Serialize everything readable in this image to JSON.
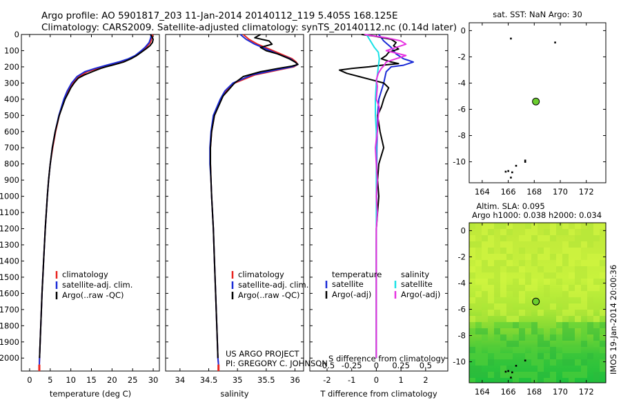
{
  "colors": {
    "climatology": "#e8231e",
    "satellite_clim": "#1a2bd6",
    "argo": "#000000",
    "satellite_sal": "#19e1e6",
    "argo_adj_sal": "#e632e0",
    "argo_dot": "#6acd2e",
    "map_bg_light": "#c8f23c",
    "map_bg_dark": "#1ebf3c"
  },
  "header": {
    "line1": "Argo profile: AO 5901817_203 11-Jan-2014 20140112_119 5.405S 168.125E",
    "line2": "Climatology: CARS2009. Satellite-adjusted climatology: synTS_20140112.nc (0.14d later)"
  },
  "credit": {
    "line1": "US ARGO PROJECT",
    "line2": "PI: GREGORY C. JOHNSON"
  },
  "timestamp": "IMOS 19-Jan-2014 20:00:36",
  "chart_data": [
    {
      "type": "line",
      "id": "temperature",
      "xlabel": "temperature (deg C)",
      "ylabel": "",
      "xlim": [
        -2,
        31.5
      ],
      "ylim": [
        2080,
        0
      ],
      "xticks": [
        0,
        5,
        10,
        15,
        20,
        25,
        30
      ],
      "yticks": [
        0,
        100,
        200,
        300,
        400,
        500,
        600,
        700,
        800,
        900,
        1000,
        1100,
        1200,
        1300,
        1400,
        1500,
        1600,
        1700,
        1800,
        1900,
        2000
      ],
      "legend": {
        "position": "lower-middle",
        "entries": [
          "climatology",
          "satellite-adj. clim.",
          "Argo(..raw -QC)"
        ]
      },
      "series": [
        {
          "name": "climatology",
          "color": "climatology",
          "depth": [
            0,
            20,
            50,
            80,
            100,
            130,
            150,
            170,
            190,
            210,
            230,
            260,
            300,
            350,
            400,
            500,
            600,
            700,
            800,
            900,
            1000,
            1200,
            1400,
            1600,
            1800,
            2000,
            2040
          ],
          "values": [
            29.9,
            29.7,
            29.3,
            28.3,
            27.5,
            26,
            24.5,
            22.5,
            19.5,
            16.5,
            14,
            12,
            10.5,
            9.3,
            8.4,
            7.2,
            6.3,
            5.6,
            5.0,
            4.6,
            4.3,
            3.8,
            3.4,
            3.0,
            2.7,
            2.4,
            2.35
          ]
        },
        {
          "name": "satellite-adj. clim.",
          "color": "satellite_clim",
          "depth": [
            0,
            20,
            50,
            80,
            100,
            130,
            150,
            170,
            190,
            210,
            230,
            260,
            300,
            350,
            400,
            500,
            600,
            700,
            800,
            900,
            1000,
            1200,
            1400,
            1600,
            1800,
            2000,
            2040
          ],
          "values": [
            29.5,
            29.4,
            29.0,
            28.0,
            27.1,
            25.6,
            24,
            21.6,
            18.6,
            15.8,
            13.4,
            11.5,
            10.2,
            9.1,
            8.3,
            7.1,
            6.2,
            5.5,
            5.0,
            4.6,
            4.3,
            3.8,
            3.4,
            3.0,
            2.7,
            2.4,
            2.35
          ]
        },
        {
          "name": "Argo(..raw -QC)",
          "color": "argo",
          "depth": [
            0,
            10,
            30,
            50,
            70,
            90,
            110,
            130,
            150,
            170,
            180,
            190,
            200,
            210,
            230,
            250,
            270,
            300,
            330,
            360,
            400,
            500,
            600,
            700,
            800,
            900,
            1000,
            1200,
            1400,
            1600,
            1800,
            2000
          ],
          "values": [
            29.3,
            29.6,
            30.0,
            29.8,
            29.2,
            28.2,
            27.1,
            26.0,
            24.6,
            22.8,
            21.5,
            20,
            18.5,
            17.2,
            15.2,
            13.3,
            11.8,
            10.8,
            10.0,
            9.4,
            8.6,
            7.2,
            6.2,
            5.5,
            5.0,
            4.6,
            4.3,
            3.8,
            3.4,
            3.0,
            2.7,
            2.4
          ]
        }
      ],
      "markers": [
        {
          "x": 2.35,
          "depth_from": 2040,
          "depth_to": 2080,
          "color": "climatology"
        }
      ]
    },
    {
      "type": "line",
      "id": "salinity",
      "xlabel": "salinity",
      "xlim": [
        33.75,
        36.15
      ],
      "ylim": [
        2080,
        0
      ],
      "xticks": [
        34,
        34.5,
        35,
        35.5,
        36
      ],
      "tick_labels": [
        "34",
        "34.5",
        "35",
        "35.5",
        "36"
      ],
      "legend": {
        "position": "lower-right",
        "entries": [
          "climatology",
          "satellite-adj. clim.",
          "Argo(..raw -QC)"
        ]
      },
      "series": [
        {
          "name": "climatology",
          "color": "climatology",
          "depth": [
            0,
            30,
            60,
            90,
            120,
            150,
            170,
            185,
            200,
            220,
            250,
            300,
            350,
            400,
            500,
            600,
            700,
            800,
            900,
            1000,
            1200,
            1400,
            1600,
            1800,
            2000,
            2040
          ],
          "values": [
            35.1,
            35.2,
            35.35,
            35.55,
            35.75,
            35.95,
            36.02,
            36.05,
            35.98,
            35.7,
            35.3,
            34.95,
            34.8,
            34.72,
            34.6,
            34.55,
            34.53,
            34.53,
            34.54,
            34.55,
            34.58,
            34.6,
            34.62,
            34.64,
            34.66,
            34.67
          ]
        },
        {
          "name": "satellite-adj. clim.",
          "color": "satellite_clim",
          "depth": [
            0,
            30,
            60,
            90,
            120,
            150,
            170,
            185,
            200,
            220,
            250,
            300,
            350,
            400,
            500,
            600,
            700,
            800,
            900,
            1000,
            1200,
            1400,
            1600,
            1800,
            2000,
            2040
          ],
          "values": [
            35.05,
            35.15,
            35.3,
            35.5,
            35.7,
            35.92,
            36.0,
            36.05,
            35.95,
            35.65,
            35.25,
            34.92,
            34.78,
            34.7,
            34.58,
            34.54,
            34.52,
            34.52,
            34.54,
            34.55,
            34.58,
            34.6,
            34.62,
            34.64,
            34.66,
            34.67
          ]
        },
        {
          "name": "Argo(..raw -QC)",
          "color": "argo",
          "depth": [
            0,
            20,
            40,
            60,
            80,
            100,
            120,
            150,
            170,
            185,
            195,
            210,
            230,
            260,
            300,
            340,
            380,
            420,
            500,
            600,
            700,
            800,
            900,
            1000,
            1200,
            1400,
            1600,
            1800,
            2000
          ],
          "values": [
            35.4,
            35.3,
            35.55,
            35.6,
            35.4,
            35.5,
            35.7,
            35.9,
            36.0,
            36.05,
            35.95,
            35.7,
            35.4,
            35.1,
            34.95,
            34.85,
            34.75,
            34.7,
            34.6,
            34.55,
            34.53,
            34.53,
            34.54,
            34.55,
            34.58,
            34.6,
            34.62,
            34.64,
            34.66
          ]
        }
      ],
      "markers": [
        {
          "x": 34.67,
          "depth_from": 2040,
          "depth_to": 2080,
          "color": "climatology"
        }
      ]
    },
    {
      "type": "line",
      "id": "difference",
      "xlabel": "T difference from climatology",
      "xlabel_top": "S difference from climatology",
      "xlim": [
        -2.7,
        2.9
      ],
      "s_xlim": [
        -0.675,
        0.725
      ],
      "ylim": [
        2080,
        0
      ],
      "xticks": [
        -2,
        -1,
        0,
        1,
        2
      ],
      "s_xticks": [
        -0.5,
        -0.25,
        0,
        0.25,
        0.5
      ],
      "s_tick_labels": [
        "-0.5",
        "-0.25",
        "0",
        "0.25",
        "0.5"
      ],
      "legend": {
        "position": "lower-middle",
        "temperature_title": "temperature",
        "salinity_title": "salinity",
        "entries": [
          "satellite",
          "Argo(-adj)",
          "satellite",
          "Argo(-adj)"
        ]
      },
      "series": [
        {
          "name": "T satellite",
          "color": "satellite_clim",
          "axis": "T",
          "depth": [
            0,
            40,
            80,
            120,
            150,
            160,
            170,
            190,
            200,
            230,
            300,
            400,
            500,
            700,
            1000,
            1300,
            1600,
            2000
          ],
          "values": [
            0.1,
            0.3,
            0.6,
            0.8,
            1.1,
            1.3,
            1.5,
            1.1,
            0.6,
            0.4,
            0.3,
            0.1,
            0.05,
            0.02,
            0.01,
            0.0,
            0.0,
            0.0
          ]
        },
        {
          "name": "T Argo(-adj)",
          "color": "argo",
          "axis": "T",
          "depth": [
            0,
            10,
            30,
            50,
            70,
            90,
            110,
            130,
            150,
            170,
            180,
            190,
            200,
            210,
            220,
            240,
            260,
            280,
            300,
            330,
            360,
            400,
            450,
            500,
            550,
            600,
            700,
            800,
            900,
            1000,
            1100,
            1200,
            1400,
            1600,
            1800,
            2000
          ],
          "values": [
            -0.6,
            -0.1,
            0.6,
            0.8,
            0.7,
            0.9,
            0.5,
            0.4,
            0.2,
            0.6,
            0.9,
            0.2,
            -0.3,
            -1.0,
            -1.5,
            -1.2,
            -0.7,
            -0.2,
            0.3,
            0.5,
            0.4,
            0.3,
            0.2,
            0.05,
            0.1,
            0.15,
            0.3,
            0.1,
            0.05,
            0.1,
            0.05,
            0.0,
            0.0,
            0.0,
            0.0,
            0.0
          ]
        },
        {
          "name": "S satellite",
          "color": "satellite_sal",
          "axis": "S",
          "depth": [
            0,
            20,
            50,
            80,
            110,
            150,
            200,
            250,
            300,
            400,
            500,
            600,
            800,
            1000,
            1300,
            1600,
            2000
          ],
          "values": [
            -0.1,
            -0.08,
            -0.05,
            -0.02,
            0.02,
            0.03,
            0.02,
            0.01,
            0.0,
            -0.01,
            -0.01,
            0.0,
            0.0,
            0.0,
            0.0,
            0.0,
            0.0
          ]
        },
        {
          "name": "S Argo(-adj)",
          "color": "argo_adj_sal",
          "axis": "S",
          "depth": [
            0,
            20,
            40,
            60,
            80,
            100,
            130,
            150,
            170,
            190,
            210,
            240,
            280,
            320,
            400,
            450,
            500,
            600,
            700,
            800,
            900,
            1000,
            1100,
            1200,
            1400,
            1600,
            1800,
            2000
          ],
          "values": [
            -0.12,
            0.1,
            0.25,
            0.3,
            0.2,
            0.1,
            0.3,
            0.2,
            0.1,
            0.08,
            0.05,
            0.02,
            0.0,
            0.01,
            0.0,
            0.03,
            0.02,
            0.01,
            -0.01,
            0.0,
            0.01,
            0.0,
            0.01,
            0.0,
            0.0,
            0.0,
            0.0,
            0.0
          ]
        }
      ]
    },
    {
      "type": "scatter",
      "id": "sst_map",
      "title": "sat. SST: NaN Argo: 30",
      "xlim": [
        163,
        173.5
      ],
      "ylim": [
        -11.6,
        0.6
      ],
      "xticks": [
        164,
        166,
        168,
        170,
        172
      ],
      "yticks": [
        0,
        -2,
        -4,
        -6,
        -8,
        -10
      ],
      "x": [
        168.125
      ],
      "y": [
        -5.405
      ],
      "land": [
        [
          166.0,
          -10.7
        ],
        [
          165.8,
          -10.75
        ],
        [
          166.3,
          -10.8
        ],
        [
          166.6,
          -10.3
        ],
        [
          166.2,
          -11.2
        ],
        [
          167.3,
          -9.9
        ],
        [
          167.3,
          -10.0
        ],
        [
          166.2,
          -0.6
        ],
        [
          169.6,
          -0.9
        ]
      ]
    },
    {
      "type": "heatmap",
      "id": "sla_map",
      "title": "Altim. SLA: 0.095",
      "subtitle": "Argo h1000: 0.038 h2000: 0.034",
      "xlim": [
        163,
        173.5
      ],
      "ylim": [
        -11.6,
        0.6
      ],
      "xticks": [
        164,
        166,
        168,
        170,
        172
      ],
      "yticks": [
        0,
        -2,
        -4,
        -6,
        -8,
        -10
      ],
      "x": [
        168.125
      ],
      "y": [
        -5.405
      ],
      "land": [
        [
          166.0,
          -10.7
        ],
        [
          165.8,
          -10.75
        ],
        [
          166.3,
          -10.8
        ],
        [
          166.6,
          -10.3
        ],
        [
          166.2,
          -11.2
        ],
        [
          167.3,
          -9.9
        ]
      ]
    }
  ]
}
